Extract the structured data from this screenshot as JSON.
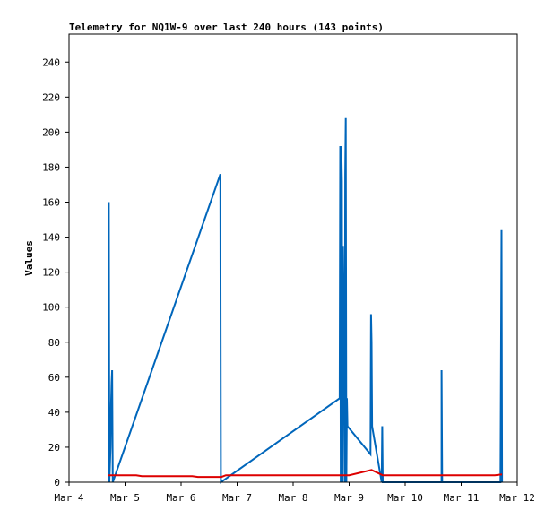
{
  "chart_data": {
    "type": "line",
    "title": "Telemetry for NQ1W-9 over last 240 hours (143 points)",
    "xlabel": "",
    "ylabel": "Values",
    "x_ticks": [
      "Mar 4",
      "Mar 5",
      "Mar 6",
      "Mar 7",
      "Mar 8",
      "Mar 9",
      "Mar 10",
      "Mar 11",
      "Mar 12"
    ],
    "y_ticks": [
      0,
      20,
      40,
      60,
      80,
      100,
      120,
      140,
      160,
      180,
      200,
      220,
      240
    ],
    "xlim": [
      4.0,
      12.0
    ],
    "ylim": [
      0,
      256
    ],
    "grid": false,
    "legend": "none",
    "series": [
      {
        "color": "#0066bb",
        "points": [
          [
            4.71,
            0
          ],
          [
            4.71,
            160
          ],
          [
            4.72,
            0
          ],
          [
            4.74,
            20
          ],
          [
            4.75,
            45
          ],
          [
            4.76,
            57
          ],
          [
            4.77,
            64
          ],
          [
            4.78,
            0
          ],
          [
            6.7,
            176
          ],
          [
            6.71,
            0
          ],
          [
            8.83,
            48
          ],
          [
            8.84,
            192
          ],
          [
            8.85,
            0
          ],
          [
            8.86,
            192
          ],
          [
            8.87,
            172
          ],
          [
            8.88,
            0
          ],
          [
            8.89,
            135
          ],
          [
            8.9,
            97
          ],
          [
            8.91,
            57
          ],
          [
            8.92,
            0
          ],
          [
            8.93,
            176
          ],
          [
            8.94,
            208
          ],
          [
            8.95,
            0
          ],
          [
            8.96,
            48
          ],
          [
            8.97,
            32
          ],
          [
            9.38,
            16
          ],
          [
            9.39,
            96
          ],
          [
            9.4,
            80
          ],
          [
            9.41,
            32
          ],
          [
            9.58,
            0
          ],
          [
            9.59,
            32
          ],
          [
            9.6,
            0
          ],
          [
            10.65,
            0
          ],
          [
            10.65,
            64
          ],
          [
            10.66,
            0
          ],
          [
            11.7,
            0
          ],
          [
            11.72,
            144
          ],
          [
            11.73,
            0
          ]
        ]
      },
      {
        "color": "#dd0000",
        "points": [
          [
            4.7,
            4
          ],
          [
            5.2,
            4
          ],
          [
            5.3,
            3.5
          ],
          [
            6.2,
            3.5
          ],
          [
            6.3,
            3
          ],
          [
            6.72,
            3
          ],
          [
            6.8,
            4
          ],
          [
            8.8,
            4
          ],
          [
            9.0,
            4
          ],
          [
            9.4,
            7
          ],
          [
            9.6,
            4
          ],
          [
            11.6,
            4
          ],
          [
            11.73,
            4.5
          ]
        ]
      }
    ]
  }
}
